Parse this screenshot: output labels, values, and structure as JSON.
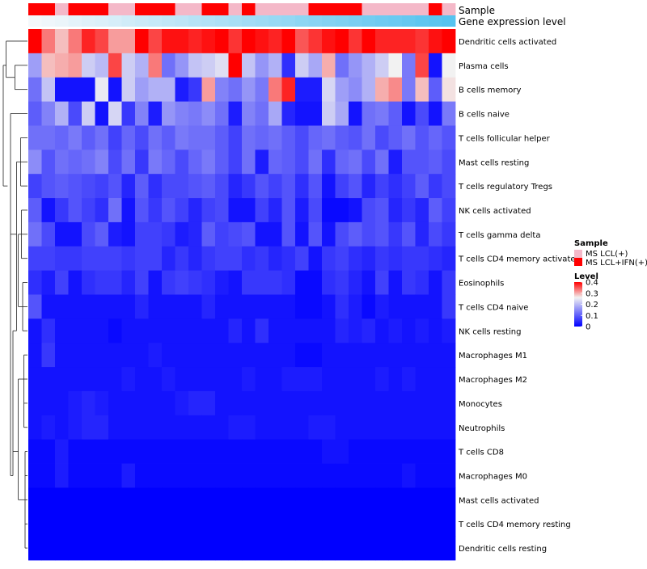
{
  "chart_data": {
    "type": "heatmap",
    "annotation_tracks": {
      "sample": {
        "label": "Sample",
        "values": [
          "MS LCL+IFN(+)",
          "MS LCL+IFN(+)",
          "MS LCL(+)",
          "MS LCL+IFN(+)",
          "MS LCL+IFN(+)",
          "MS LCL+IFN(+)",
          "MS LCL(+)",
          "MS LCL(+)",
          "MS LCL+IFN(+)",
          "MS LCL+IFN(+)",
          "MS LCL+IFN(+)",
          "MS LCL(+)",
          "MS LCL(+)",
          "MS LCL+IFN(+)",
          "MS LCL+IFN(+)",
          "MS LCL(+)",
          "MS LCL+IFN(+)",
          "MS LCL(+)",
          "MS LCL(+)",
          "MS LCL(+)",
          "MS LCL(+)",
          "MS LCL+IFN(+)",
          "MS LCL+IFN(+)",
          "MS LCL+IFN(+)",
          "MS LCL+IFN(+)",
          "MS LCL(+)",
          "MS LCL(+)",
          "MS LCL(+)",
          "MS LCL(+)",
          "MS LCL(+)",
          "MS LCL+IFN(+)",
          "MS LCL(+)"
        ]
      },
      "gene_expression": {
        "label": "Gene expression level",
        "values": [
          0.0,
          0.03,
          0.06,
          0.1,
          0.13,
          0.16,
          0.19,
          0.23,
          0.26,
          0.29,
          0.32,
          0.35,
          0.39,
          0.42,
          0.45,
          0.48,
          0.52,
          0.55,
          0.58,
          0.61,
          0.65,
          0.68,
          0.71,
          0.74,
          0.77,
          0.81,
          0.84,
          0.87,
          0.9,
          0.94,
          0.97,
          1.0
        ],
        "low_color": "#f4f8fb",
        "high_color": "#56c3ef"
      }
    },
    "rows": [
      "Dendritic cells activated",
      "Plasma cells",
      "B cells memory",
      "B cells naive",
      "T cells follicular helper",
      "Mast cells resting",
      "T cells regulatory  Tregs",
      "NK cells activated",
      "T cells gamma delta",
      "T cells CD4 memory activated",
      "Eosinophils",
      "T cells CD4 naive",
      "NK cells resting",
      "Macrophages M1",
      "Macrophages M2",
      "Monocytes",
      "Neutrophils",
      "T cells CD8",
      "Macrophages M0",
      "Mast cells activated",
      "T cells CD4 memory resting",
      "Dendritic cells resting"
    ],
    "matrix": [
      [
        0.4,
        0.33,
        0.29,
        0.33,
        0.38,
        0.36,
        0.31,
        0.31,
        0.4,
        0.36,
        0.39,
        0.39,
        0.38,
        0.39,
        0.4,
        0.37,
        0.4,
        0.39,
        0.38,
        0.4,
        0.35,
        0.37,
        0.39,
        0.4,
        0.37,
        0.4,
        0.38,
        0.38,
        0.38,
        0.37,
        0.39,
        0.4
      ],
      [
        0.17,
        0.29,
        0.3,
        0.31,
        0.22,
        0.2,
        0.36,
        0.22,
        0.19,
        0.33,
        0.12,
        0.16,
        0.21,
        0.22,
        0.24,
        0.4,
        0.21,
        0.16,
        0.19,
        0.05,
        0.22,
        0.18,
        0.3,
        0.12,
        0.16,
        0.19,
        0.22,
        0.26,
        0.13,
        0.36,
        0.02,
        0.26
      ],
      [
        0.12,
        0.21,
        0.02,
        0.02,
        0.02,
        0.25,
        0.02,
        0.22,
        0.17,
        0.19,
        0.19,
        0.03,
        0.06,
        0.31,
        0.14,
        0.12,
        0.16,
        0.13,
        0.33,
        0.38,
        0.03,
        0.03,
        0.23,
        0.17,
        0.15,
        0.19,
        0.3,
        0.32,
        0.13,
        0.29,
        0.1,
        0.27
      ],
      [
        0.1,
        0.14,
        0.19,
        0.08,
        0.22,
        0.02,
        0.23,
        0.06,
        0.14,
        0.03,
        0.16,
        0.14,
        0.13,
        0.15,
        0.12,
        0.03,
        0.14,
        0.12,
        0.18,
        0.04,
        0.02,
        0.02,
        0.22,
        0.18,
        0.02,
        0.12,
        0.13,
        0.1,
        0.02,
        0.08,
        0.02,
        0.13
      ],
      [
        0.12,
        0.12,
        0.11,
        0.13,
        0.1,
        0.12,
        0.07,
        0.11,
        0.08,
        0.12,
        0.1,
        0.13,
        0.12,
        0.12,
        0.1,
        0.07,
        0.12,
        0.11,
        0.12,
        0.1,
        0.08,
        0.11,
        0.12,
        0.1,
        0.09,
        0.12,
        0.08,
        0.1,
        0.12,
        0.09,
        0.11,
        0.09
      ],
      [
        0.15,
        0.09,
        0.12,
        0.11,
        0.12,
        0.14,
        0.08,
        0.12,
        0.06,
        0.13,
        0.11,
        0.08,
        0.11,
        0.13,
        0.1,
        0.07,
        0.12,
        0.03,
        0.11,
        0.1,
        0.08,
        0.12,
        0.05,
        0.11,
        0.12,
        0.08,
        0.12,
        0.03,
        0.09,
        0.09,
        0.1,
        0.08
      ],
      [
        0.07,
        0.09,
        0.1,
        0.09,
        0.08,
        0.07,
        0.09,
        0.04,
        0.1,
        0.05,
        0.08,
        0.08,
        0.09,
        0.1,
        0.08,
        0.04,
        0.06,
        0.09,
        0.07,
        0.09,
        0.05,
        0.09,
        0.02,
        0.07,
        0.09,
        0.04,
        0.07,
        0.05,
        0.07,
        0.1,
        0.06,
        0.08
      ],
      [
        0.1,
        0.02,
        0.06,
        0.09,
        0.07,
        0.05,
        0.12,
        0.02,
        0.09,
        0.06,
        0.09,
        0.07,
        0.04,
        0.07,
        0.08,
        0.02,
        0.02,
        0.07,
        0.04,
        0.09,
        0.03,
        0.08,
        0.01,
        0.01,
        0.02,
        0.08,
        0.09,
        0.04,
        0.06,
        0.04,
        0.1,
        0.07
      ],
      [
        0.12,
        0.08,
        0.02,
        0.02,
        0.08,
        0.1,
        0.03,
        0.02,
        0.07,
        0.07,
        0.06,
        0.03,
        0.04,
        0.1,
        0.07,
        0.08,
        0.09,
        0.02,
        0.02,
        0.09,
        0.02,
        0.09,
        0.02,
        0.08,
        0.1,
        0.08,
        0.09,
        0.06,
        0.09,
        0.04,
        0.08,
        0.06
      ],
      [
        0.07,
        0.07,
        0.06,
        0.06,
        0.07,
        0.07,
        0.07,
        0.06,
        0.07,
        0.07,
        0.04,
        0.06,
        0.04,
        0.06,
        0.07,
        0.07,
        0.05,
        0.06,
        0.04,
        0.05,
        0.07,
        0.02,
        0.06,
        0.07,
        0.05,
        0.04,
        0.06,
        0.05,
        0.06,
        0.06,
        0.05,
        0.04
      ],
      [
        0.05,
        0.03,
        0.07,
        0.02,
        0.05,
        0.06,
        0.06,
        0.04,
        0.07,
        0.02,
        0.06,
        0.07,
        0.06,
        0.05,
        0.03,
        0.02,
        0.06,
        0.06,
        0.06,
        0.05,
        0.01,
        0.01,
        0.05,
        0.06,
        0.04,
        0.02,
        0.07,
        0.02,
        0.06,
        0.05,
        0.02,
        0.06
      ],
      [
        0.09,
        0.02,
        0.02,
        0.02,
        0.02,
        0.02,
        0.02,
        0.02,
        0.04,
        0.02,
        0.02,
        0.02,
        0.02,
        0.04,
        0.02,
        0.02,
        0.02,
        0.02,
        0.02,
        0.02,
        0.01,
        0.01,
        0.02,
        0.05,
        0.03,
        0.01,
        0.03,
        0.02,
        0.02,
        0.02,
        0.02,
        0.06
      ],
      [
        0.02,
        0.05,
        0.02,
        0.02,
        0.02,
        0.02,
        0.01,
        0.02,
        0.02,
        0.02,
        0.02,
        0.02,
        0.02,
        0.02,
        0.02,
        0.04,
        0.02,
        0.05,
        0.02,
        0.02,
        0.02,
        0.02,
        0.02,
        0.04,
        0.03,
        0.04,
        0.02,
        0.03,
        0.02,
        0.03,
        0.02,
        0.03
      ],
      [
        0.02,
        0.06,
        0.02,
        0.02,
        0.02,
        0.02,
        0.02,
        0.02,
        0.02,
        0.03,
        0.02,
        0.02,
        0.02,
        0.02,
        0.02,
        0.02,
        0.02,
        0.02,
        0.02,
        0.02,
        0.01,
        0.01,
        0.02,
        0.02,
        0.02,
        0.02,
        0.02,
        0.02,
        0.02,
        0.02,
        0.02,
        0.02
      ],
      [
        0.02,
        0.02,
        0.02,
        0.02,
        0.02,
        0.02,
        0.02,
        0.03,
        0.02,
        0.02,
        0.03,
        0.02,
        0.02,
        0.02,
        0.02,
        0.02,
        0.03,
        0.02,
        0.02,
        0.03,
        0.03,
        0.03,
        0.02,
        0.02,
        0.02,
        0.02,
        0.03,
        0.02,
        0.03,
        0.02,
        0.02,
        0.02
      ],
      [
        0.02,
        0.02,
        0.02,
        0.03,
        0.04,
        0.03,
        0.02,
        0.02,
        0.02,
        0.02,
        0.02,
        0.03,
        0.04,
        0.04,
        0.02,
        0.02,
        0.02,
        0.02,
        0.02,
        0.02,
        0.02,
        0.02,
        0.02,
        0.02,
        0.02,
        0.02,
        0.02,
        0.02,
        0.02,
        0.02,
        0.02,
        0.02
      ],
      [
        0.02,
        0.03,
        0.02,
        0.03,
        0.04,
        0.04,
        0.02,
        0.02,
        0.02,
        0.02,
        0.02,
        0.02,
        0.02,
        0.02,
        0.02,
        0.03,
        0.03,
        0.02,
        0.02,
        0.02,
        0.02,
        0.03,
        0.03,
        0.02,
        0.02,
        0.02,
        0.02,
        0.02,
        0.02,
        0.02,
        0.02,
        0.02
      ],
      [
        0.01,
        0.01,
        0.03,
        0.01,
        0.01,
        0.01,
        0.01,
        0.01,
        0.01,
        0.01,
        0.01,
        0.01,
        0.01,
        0.01,
        0.01,
        0.01,
        0.01,
        0.01,
        0.01,
        0.01,
        0.01,
        0.01,
        0.02,
        0.02,
        0.01,
        0.01,
        0.01,
        0.01,
        0.01,
        0.01,
        0.01,
        0.01
      ],
      [
        0.01,
        0.01,
        0.03,
        0.01,
        0.01,
        0.01,
        0.01,
        0.03,
        0.01,
        0.01,
        0.01,
        0.01,
        0.01,
        0.01,
        0.01,
        0.01,
        0.01,
        0.01,
        0.01,
        0.01,
        0.01,
        0.01,
        0.01,
        0.01,
        0.01,
        0.01,
        0.01,
        0.01,
        0.02,
        0.01,
        0.01,
        0.01
      ],
      [
        0.0,
        0.0,
        0.0,
        0.0,
        0.0,
        0.0,
        0.0,
        0.0,
        0.0,
        0.0,
        0.0,
        0.0,
        0.0,
        0.0,
        0.0,
        0.0,
        0.0,
        0.0,
        0.0,
        0.0,
        0.0,
        0.0,
        0.0,
        0.0,
        0.0,
        0.0,
        0.0,
        0.0,
        0.0,
        0.0,
        0.0,
        0.0
      ],
      [
        0.0,
        0.0,
        0.0,
        0.0,
        0.0,
        0.0,
        0.0,
        0.0,
        0.0,
        0.0,
        0.0,
        0.0,
        0.0,
        0.0,
        0.0,
        0.0,
        0.0,
        0.0,
        0.0,
        0.0,
        0.0,
        0.0,
        0.0,
        0.0,
        0.0,
        0.0,
        0.0,
        0.0,
        0.0,
        0.0,
        0.0,
        0.0
      ],
      [
        0.0,
        0.0,
        0.0,
        0.0,
        0.0,
        0.0,
        0.0,
        0.0,
        0.0,
        0.0,
        0.0,
        0.0,
        0.0,
        0.0,
        0.0,
        0.0,
        0.0,
        0.0,
        0.0,
        0.0,
        0.0,
        0.0,
        0.0,
        0.0,
        0.0,
        0.0,
        0.0,
        0.0,
        0.0,
        0.0,
        0.0,
        0.0
      ]
    ],
    "color_scale": {
      "min": 0,
      "max": 0.4,
      "low": "#0000ff",
      "mid": "#f2f2f2",
      "high": "#ff0000",
      "midpoint": 0.26
    },
    "legends": {
      "sample": {
        "title": "Sample",
        "entries": [
          {
            "label": "MS LCL(+)",
            "color": "#f4b8c8"
          },
          {
            "label": "MS LCL+IFN(+)",
            "color": "#ff0000"
          }
        ]
      },
      "level": {
        "title": "Level",
        "ticks": [
          "0.4",
          "0.3",
          "0.2",
          "0.1",
          "0"
        ],
        "tick_values": [
          0.4,
          0.3,
          0.2,
          0.1,
          0
        ]
      }
    },
    "row_dendrogram": true,
    "xlabel": "",
    "ylabel": ""
  }
}
